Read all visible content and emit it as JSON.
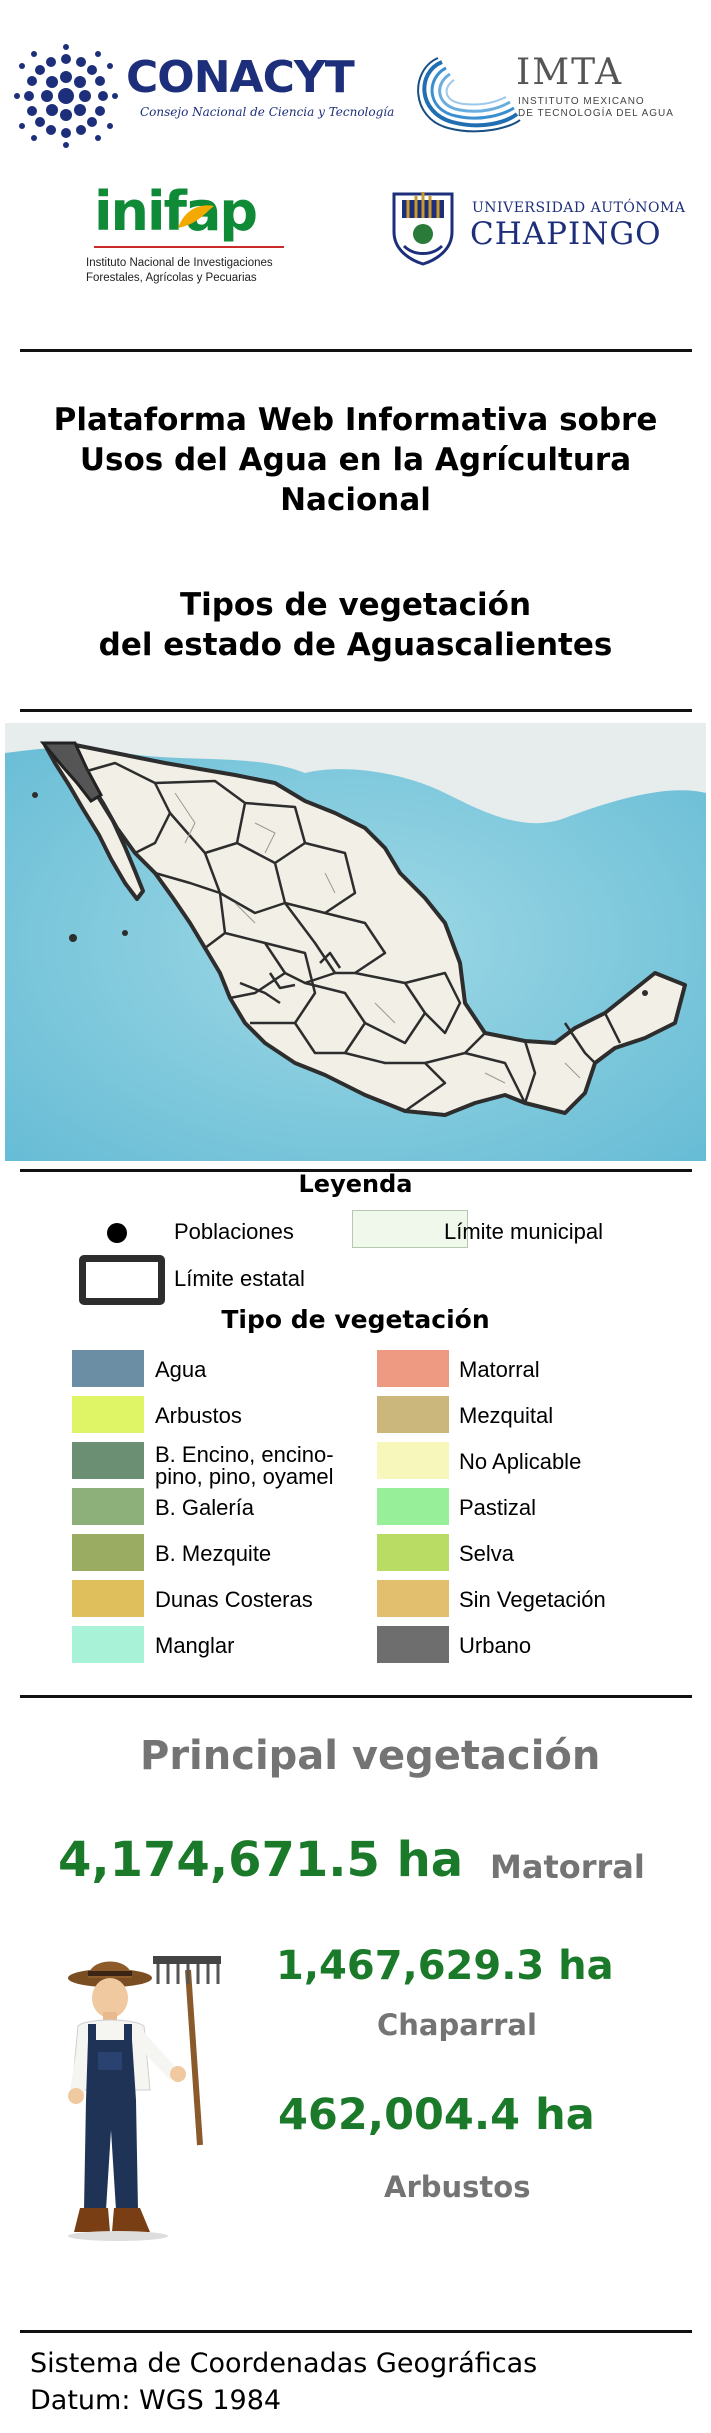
{
  "logos": {
    "conacyt": {
      "name": "CONACYT",
      "subtitle": "Consejo Nacional de Ciencia y Tecnología"
    },
    "imta": {
      "name": "IMTA",
      "subtitle_line1": "INSTITUTO MEXICANO",
      "subtitle_line2": "DE TECNOLOGÍA DEL AGUA"
    },
    "inifap": {
      "name": "inifap",
      "subtitle_line1": "Instituto Nacional de Investigaciones",
      "subtitle_line2": "Forestales, Agrícolas y Pecuarias"
    },
    "chapingo": {
      "top": "UNIVERSIDAD AUTÓNOMA",
      "name": "CHAPINGO"
    }
  },
  "title": {
    "line1": "Plataforma Web Informativa sobre",
    "line2": "Usos del Agua en la Agrícultura",
    "line3": "Nacional",
    "line4": "Tipos de vegetación",
    "line5": "del estado de Aguascalientes"
  },
  "legend": {
    "title": "Leyenda",
    "poblaciones": "Poblaciones",
    "limite_municipal": "Límite municipal",
    "limite_estatal": "Límite estatal",
    "veg_title": "Tipo de vegetación",
    "left_items": [
      {
        "label": "Agua",
        "color": "#6c8ea5"
      },
      {
        "label": "Arbustos",
        "color": "#dff566"
      },
      {
        "label_line1": "B. Encino, encino-",
        "label_line2": "pino, pino, oyamel",
        "color": "#6b8f72"
      },
      {
        "label": "B. Galería",
        "color": "#8daf7a"
      },
      {
        "label": "B. Mezquite",
        "color": "#9aac62"
      },
      {
        "label": "Dunas Costeras",
        "color": "#dfbf5c"
      },
      {
        "label": "Manglar",
        "color": "#a8f2d8"
      }
    ],
    "right_items": [
      {
        "label": "Matorral",
        "color": "#ee9a82"
      },
      {
        "label": "Mezquital",
        "color": "#cbb67c"
      },
      {
        "label": "No Aplicable",
        "color": "#f7f6bb"
      },
      {
        "label": "Pastizal",
        "color": "#98ef9a"
      },
      {
        "label": "Selva",
        "color": "#b9dc64"
      },
      {
        "label": "Sin Vegetación",
        "color": "#e2bf6f"
      },
      {
        "label": "Urbano",
        "color": "#6e6e6e"
      }
    ]
  },
  "principal": {
    "title": "Principal vegetación",
    "items": [
      {
        "value": "4,174,671.5 ha",
        "name": "Matorral"
      },
      {
        "value": "1,467,629.3 ha",
        "name": "Chaparral"
      },
      {
        "value": "462,004.4  ha",
        "name": "Arbustos"
      }
    ]
  },
  "footer": {
    "line1": "Sistema de Coordenadas Geográficas",
    "line2": "Datum: WGS 1984"
  }
}
